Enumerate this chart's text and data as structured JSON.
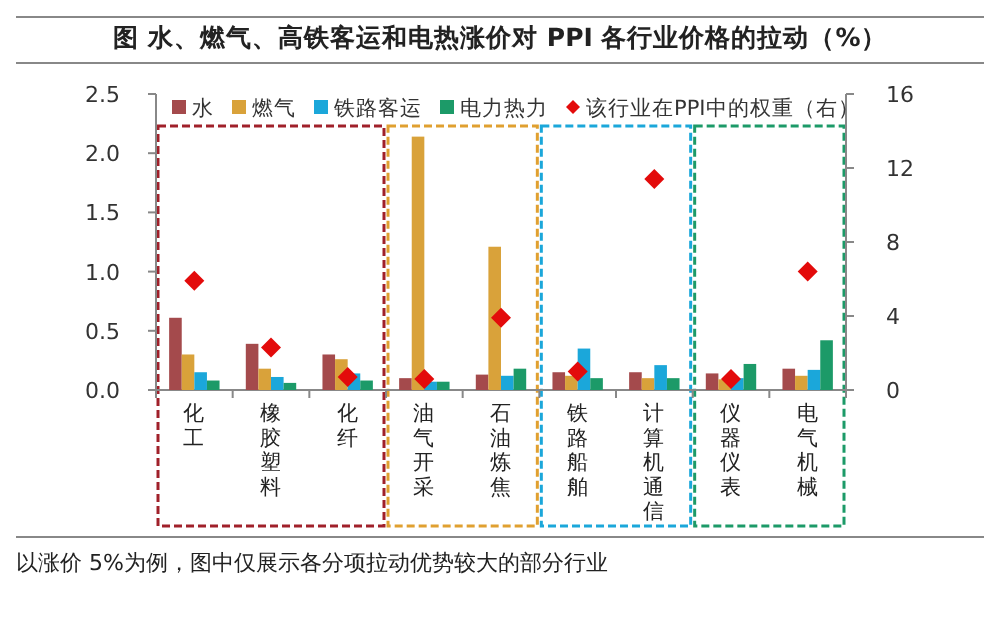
{
  "chart_data": {
    "type": "bar",
    "title": "图 水、燃气、高铁客运和电热涨价对 PPI 各行业价格的拉动（%）",
    "categories": [
      "化工",
      "橡胶塑料",
      "化纤",
      "油气开采",
      "石油炼焦",
      "铁路船舶",
      "计算机通信",
      "仪器仪表",
      "电气机械"
    ],
    "series": [
      {
        "name": "水",
        "color": "#a44a4c",
        "values": [
          0.61,
          0.39,
          0.3,
          0.1,
          0.13,
          0.15,
          0.15,
          0.14,
          0.18
        ]
      },
      {
        "name": "燃气",
        "color": "#d9a23a",
        "values": [
          0.3,
          0.18,
          0.26,
          2.14,
          1.21,
          0.12,
          0.1,
          0.09,
          0.12
        ]
      },
      {
        "name": "铁路客运",
        "color": "#1ba7da",
        "values": [
          0.15,
          0.11,
          0.14,
          0.07,
          0.12,
          0.35,
          0.21,
          0.1,
          0.17
        ]
      },
      {
        "name": "电力热力",
        "color": "#1c9a68",
        "values": [
          0.08,
          0.06,
          0.08,
          0.07,
          0.18,
          0.1,
          0.1,
          0.22,
          0.42
        ]
      },
      {
        "name": "该行业在PPI中的权重（右）",
        "type": "scatter",
        "axis": "y2",
        "marker": "diamond",
        "color": "#e30b0b",
        "values": [
          5.9,
          2.3,
          0.7,
          0.6,
          3.9,
          1.0,
          11.4,
          0.6,
          6.4
        ]
      }
    ],
    "ylim": [
      0,
      2.5
    ],
    "yticks": [
      {
        "value": 0,
        "label": "0.0"
      },
      {
        "value": 0.5,
        "label": "0.5"
      },
      {
        "value": 1,
        "label": "1.0"
      },
      {
        "value": 1.5,
        "label": "1.5"
      },
      {
        "value": 2,
        "label": "2.0"
      },
      {
        "value": 2.5,
        "label": "2.5"
      }
    ],
    "y2lim": [
      0,
      16
    ],
    "y2ticks": [
      0,
      4,
      8,
      12,
      16
    ],
    "legend": "top",
    "grid": false,
    "annotations": [
      "以涨价 5%为例，图中仅展示各分项拉动优势较大的部分行业"
    ]
  }
}
